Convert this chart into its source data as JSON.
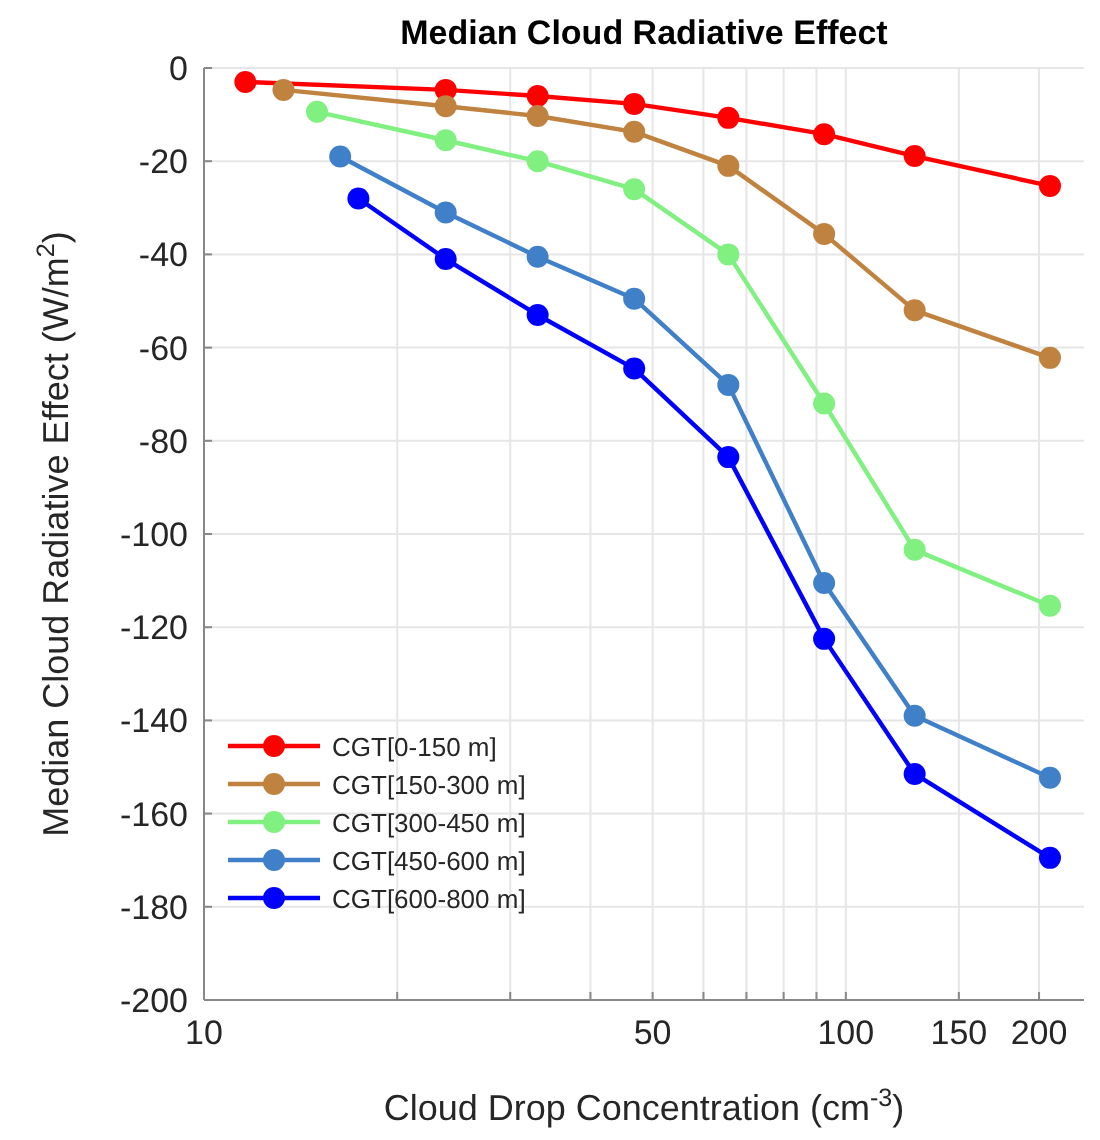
{
  "chart_data": {
    "type": "line",
    "title": "Median Cloud Radiative Effect",
    "xlabel": "Cloud Drop Concentration (cm$^{-3}$)",
    "ylabel": "Median Cloud Radiative Effect (W/m$^{2}$)",
    "log": "x",
    "xlim": [
      10,
      235
    ],
    "xticks": [
      10,
      {
        "value": 20,
        "label": null
      },
      {
        "value": 30,
        "label": null
      },
      {
        "value": 40,
        "label": null
      },
      50,
      {
        "value": 60,
        "label": null
      },
      {
        "value": 70,
        "label": null
      },
      {
        "value": 80,
        "label": null
      },
      {
        "value": 90,
        "label": null
      },
      100,
      150,
      200
    ],
    "ylim": [
      -200,
      0
    ],
    "yticks": [
      -200,
      -180,
      -160,
      -140,
      -120,
      -100,
      -80,
      -60,
      -40,
      -20,
      0
    ],
    "grid": true,
    "legend": "bottom left",
    "marker": "circle",
    "line_style": "solid",
    "series": [
      {
        "name": "CGT[0-150 m]",
        "color": "#ff0000",
        "x": [
          11.6,
          23.8,
          33.1,
          46.8,
          65.6,
          92.5,
          128,
          208
        ],
        "values": [
          -3,
          -4.7,
          -6,
          -7.7,
          -10.7,
          -14.2,
          -18.9,
          -25.3
        ]
      },
      {
        "name": "CGT[150-300 m]",
        "color": "#c0823f",
        "x": [
          13.3,
          23.8,
          33.1,
          46.8,
          65.6,
          92.5,
          128,
          208
        ],
        "values": [
          -4.7,
          -8.2,
          -10.3,
          -13.7,
          -21,
          -35.6,
          -52,
          -62.2
        ]
      },
      {
        "name": "CGT[300-450 m]",
        "color": "#80f080",
        "x": [
          15,
          23.8,
          33.1,
          46.8,
          65.6,
          92.5,
          128,
          208
        ],
        "values": [
          -9.4,
          -15.5,
          -20,
          -26,
          -40,
          -72,
          -103.4,
          -115.4
        ]
      },
      {
        "name": "CGT[450-600 m]",
        "color": "#3f80c8",
        "x": [
          16.3,
          23.8,
          33.1,
          46.8,
          65.6,
          92.5,
          128,
          208
        ],
        "values": [
          -19,
          -31,
          -40.5,
          -49.5,
          -68,
          -110.5,
          -139,
          -152.3
        ]
      },
      {
        "name": "CGT[600-800 m]",
        "color": "#0000ff",
        "x": [
          17.4,
          23.8,
          33.1,
          46.8,
          65.6,
          92.5,
          128,
          208
        ],
        "values": [
          -28,
          -41,
          -53,
          -64.5,
          -83.5,
          -122.5,
          -151.5,
          -169.5
        ]
      }
    ]
  }
}
